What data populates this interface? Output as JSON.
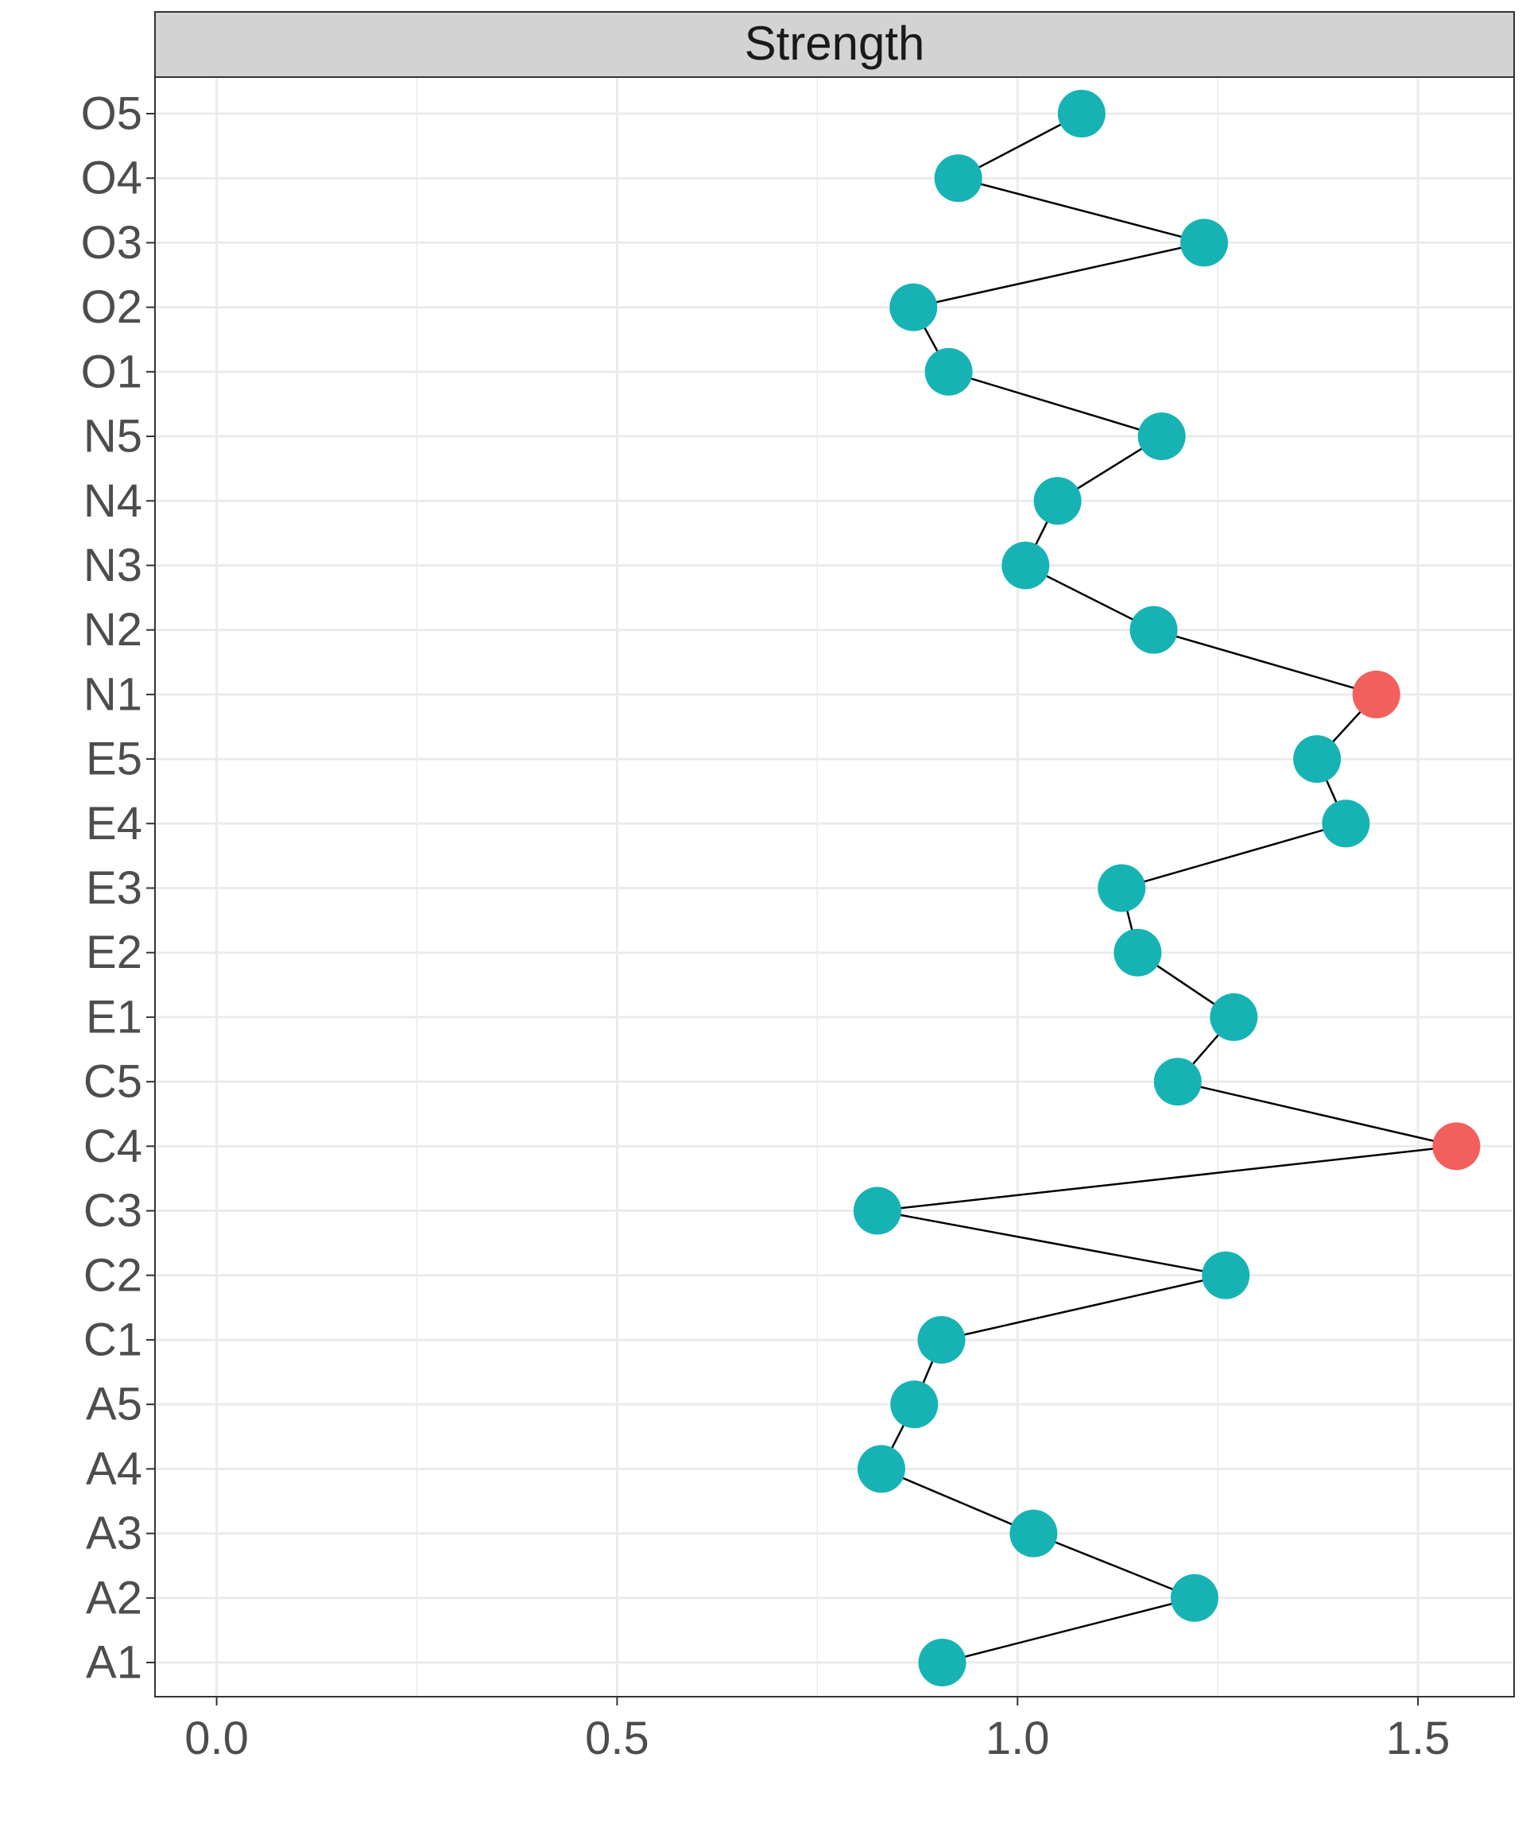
{
  "chart_data": {
    "type": "scatter",
    "title": "",
    "facet_label": "Strength",
    "xlabel": "",
    "ylabel": "",
    "xlim": [
      -0.077,
      1.62
    ],
    "x_ticks": [
      0.0,
      0.5,
      1.0,
      1.5
    ],
    "x_tick_labels": [
      "0.0",
      "0.5",
      "1.0",
      "1.5"
    ],
    "grid": true,
    "legend": "none",
    "connect_points": true,
    "colors": {
      "normal": "#17b3b4",
      "highlight": "#f25f5c",
      "line": "#000000",
      "grid": "#ebebeb",
      "strip_fill": "#d3d3d3"
    },
    "categories": [
      "A1",
      "A2",
      "A3",
      "A4",
      "A5",
      "C1",
      "C2",
      "C3",
      "C4",
      "C5",
      "E1",
      "E2",
      "E3",
      "E4",
      "E5",
      "N1",
      "N2",
      "N3",
      "N4",
      "N5",
      "O1",
      "O2",
      "O3",
      "O4",
      "O5"
    ],
    "values": [
      0.906,
      1.221,
      1.02,
      0.83,
      0.871,
      0.905,
      1.26,
      0.825,
      1.548,
      1.2,
      1.27,
      1.15,
      1.13,
      1.41,
      1.374,
      1.448,
      1.17,
      1.01,
      1.05,
      1.18,
      0.914,
      0.87,
      1.233,
      0.926,
      1.08
    ],
    "highlight": [
      false,
      false,
      false,
      false,
      false,
      false,
      false,
      false,
      true,
      false,
      false,
      false,
      false,
      false,
      false,
      true,
      false,
      false,
      false,
      false,
      false,
      false,
      false,
      false,
      false
    ]
  }
}
